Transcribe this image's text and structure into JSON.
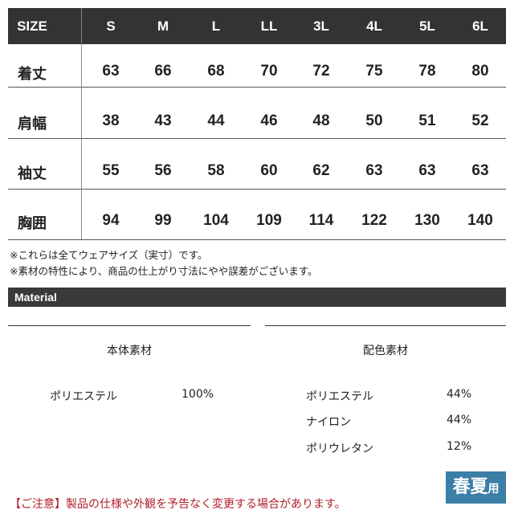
{
  "size_table": {
    "header_label": "SIZE",
    "sizes": [
      "S",
      "M",
      "L",
      "LL",
      "3L",
      "4L",
      "5L",
      "6L"
    ],
    "rows": [
      {
        "label": "着丈",
        "values": [
          "63",
          "66",
          "68",
          "70",
          "72",
          "75",
          "78",
          "80"
        ]
      },
      {
        "label": "肩幅",
        "values": [
          "38",
          "43",
          "44",
          "46",
          "48",
          "50",
          "51",
          "52"
        ]
      },
      {
        "label": "袖丈",
        "values": [
          "55",
          "56",
          "58",
          "60",
          "62",
          "63",
          "63",
          "63"
        ]
      },
      {
        "label": "胸囲",
        "values": [
          "94",
          "99",
          "104",
          "109",
          "114",
          "122",
          "130",
          "140"
        ]
      }
    ]
  },
  "notes": [
    "※これらは全てウェアサイズ（実寸）です。",
    "※素材の特性により、商品の仕上がり寸法にやや誤差がございます。"
  ],
  "material": {
    "title": "Material",
    "body": {
      "heading": "本体素材",
      "items": [
        {
          "name": "ポリエステル",
          "pct": "100%"
        }
      ]
    },
    "accent": {
      "heading": "配色素材",
      "items": [
        {
          "name": "ポリエステル",
          "pct": "44%"
        },
        {
          "name": "ナイロン",
          "pct": "44%"
        },
        {
          "name": "ポリウレタン",
          "pct": "12%"
        }
      ]
    }
  },
  "badge": {
    "main": "春夏",
    "small": "用",
    "color": "#3b7ea6"
  },
  "warning": "【ご注意】製品の仕様や外観を予告なく変更する場合があります。"
}
